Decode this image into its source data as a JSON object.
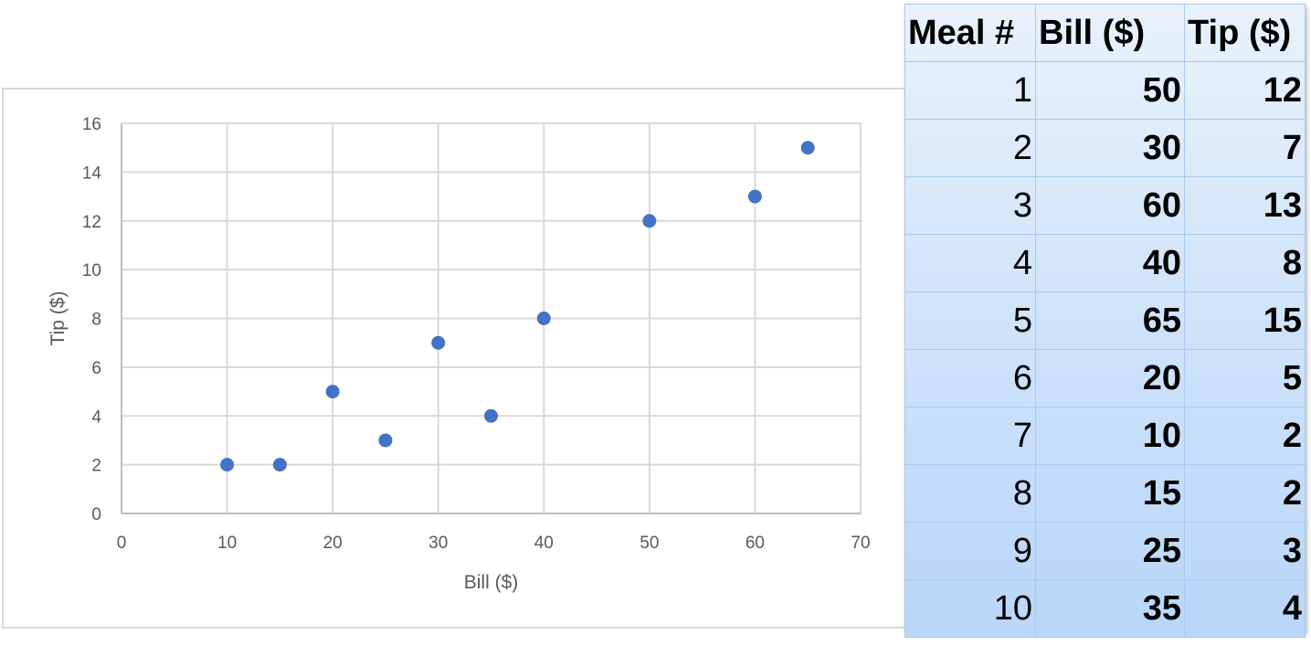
{
  "chart_data": {
    "type": "scatter",
    "title": "",
    "xlabel": "Bill ($)",
    "ylabel": "Tip ($)",
    "xlim": [
      0,
      70
    ],
    "ylim": [
      0,
      16
    ],
    "x_ticks": [
      0,
      10,
      20,
      30,
      40,
      50,
      60,
      70
    ],
    "y_ticks": [
      0,
      2,
      4,
      6,
      8,
      10,
      12,
      14,
      16
    ],
    "grid": true,
    "marker_color": "#4472c4",
    "points": [
      {
        "x": 50,
        "y": 12
      },
      {
        "x": 30,
        "y": 7
      },
      {
        "x": 60,
        "y": 13
      },
      {
        "x": 40,
        "y": 8
      },
      {
        "x": 65,
        "y": 15
      },
      {
        "x": 20,
        "y": 5
      },
      {
        "x": 10,
        "y": 2
      },
      {
        "x": 15,
        "y": 2
      },
      {
        "x": 25,
        "y": 3
      },
      {
        "x": 35,
        "y": 4
      }
    ]
  },
  "table": {
    "headers": [
      "Meal #",
      "Bill ($)",
      "Tip ($)"
    ],
    "rows": [
      [
        "1",
        "50",
        "12"
      ],
      [
        "2",
        "30",
        "7"
      ],
      [
        "3",
        "60",
        "13"
      ],
      [
        "4",
        "40",
        "8"
      ],
      [
        "5",
        "65",
        "15"
      ],
      [
        "6",
        "20",
        "5"
      ],
      [
        "7",
        "10",
        "2"
      ],
      [
        "8",
        "15",
        "2"
      ],
      [
        "9",
        "25",
        "3"
      ],
      [
        "10",
        "35",
        "4"
      ]
    ]
  }
}
